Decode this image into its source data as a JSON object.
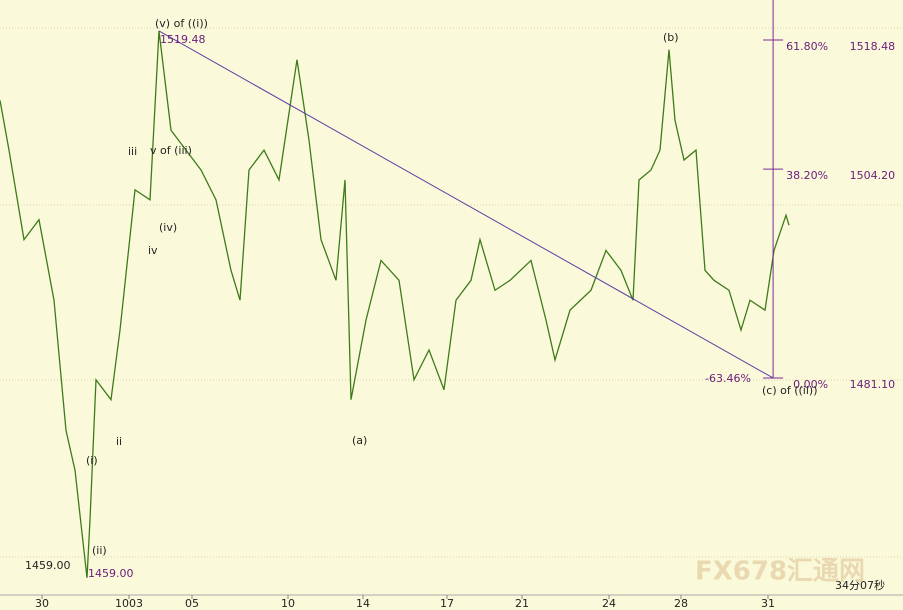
{
  "chart_data": {
    "type": "line",
    "x": [
      0,
      3,
      8,
      13,
      18,
      22,
      25,
      29,
      30,
      32,
      37,
      40,
      45,
      50,
      53,
      57,
      62,
      67,
      72,
      77,
      80,
      83,
      88,
      93,
      99,
      103,
      107,
      112,
      115,
      117,
      122,
      127,
      133,
      138,
      143,
      148,
      152,
      157,
      160,
      165,
      170,
      177,
      182,
      185,
      190,
      197,
      202,
      207,
      211,
      213,
      217,
      220,
      223,
      225,
      228,
      232,
      235,
      238,
      243,
      247,
      250,
      255,
      258,
      262,
      263
    ],
    "series": [
      {
        "color": "#3f7a1a",
        "values": [
          1511.8,
          1506.3,
          1496.4,
          1498.6,
          1489.7,
          1475.3,
          1470.9,
          1459.0,
          1465.4,
          1480.9,
          1478.7,
          1486.4,
          1501.9,
          1500.8,
          1519.48,
          1508.5,
          1506.3,
          1504.1,
          1500.8,
          1493.0,
          1489.7,
          1504.1,
          1506.3,
          1503.0,
          1516.3,
          1507.4,
          1496.4,
          1491.9,
          1503.0,
          1478.7,
          1487.5,
          1494.1,
          1491.9,
          1480.9,
          1484.2,
          1479.8,
          1489.7,
          1491.9,
          1496.4,
          1490.8,
          1491.9,
          1494.1,
          1487.5,
          1483.1,
          1488.6,
          1490.8,
          1495.2,
          1493.0,
          1489.7,
          1503.0,
          1504.1,
          1506.3,
          1517.4,
          1509.6,
          1505.2,
          1506.3,
          1493.0,
          1491.9,
          1490.8,
          1486.4,
          1489.7,
          1488.6,
          1495.2,
          1499.1,
          1498.0
        ]
      }
    ],
    "xlim": [
      0,
      301
    ],
    "ylim": [
      1457.1,
      1522.9
    ],
    "xticks": [
      {
        "value": 14,
        "label": "30"
      },
      {
        "value": 43,
        "label": "1003"
      },
      {
        "value": 64,
        "label": "05"
      },
      {
        "value": 96,
        "label": "10"
      },
      {
        "value": 121,
        "label": "14"
      },
      {
        "value": 149,
        "label": "17"
      },
      {
        "value": 174,
        "label": "21"
      },
      {
        "value": 203,
        "label": "24"
      },
      {
        "value": 227,
        "label": "28"
      },
      {
        "value": 256,
        "label": "31"
      }
    ],
    "trend_line": {
      "x": [
        53,
        257.7
      ],
      "values": [
        1519.48,
        1481.1
      ],
      "color": "#5b3fa3"
    },
    "fib_x": 257.7,
    "fib_levels": [
      {
        "pct": "61.80%",
        "price": {
          "value": 1518.48,
          "label": "1518.48"
        }
      },
      {
        "pct": "38.20%",
        "price": {
          "value": 1504.2,
          "label": "1504.20"
        }
      },
      {
        "pct": "0.00%",
        "price": {
          "value": 1481.1,
          "label": "1481.10"
        }
      }
    ],
    "fib_extra": "-63.46%",
    "annotations": [
      "(v) of ((i))",
      "1519.48",
      "(b)",
      "iii",
      "v of (iii)",
      "(iv)",
      "iv",
      "(a)",
      "ii",
      "(i)",
      "(ii)",
      "1459.00",
      "1459.00",
      "(c) of ((ii))"
    ],
    "timer": "34分07秒",
    "watermark": "FX678汇通网"
  }
}
